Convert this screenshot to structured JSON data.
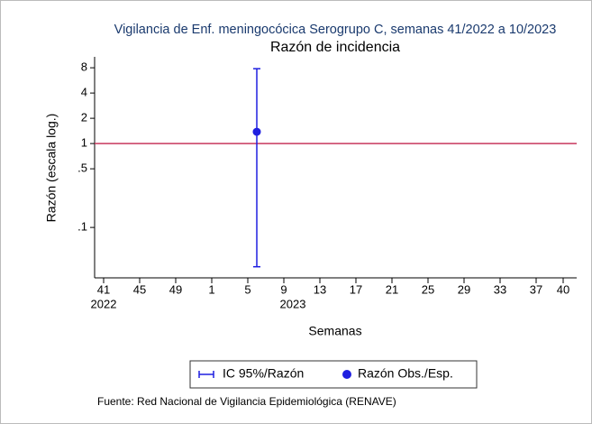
{
  "chart_data": {
    "type": "errorbar",
    "title": "Vigilancia de Enf. meningocócica Serogrupo C, semanas 41/2022 a 10/2023",
    "subtitle": "Razón de incidencia",
    "y_label": "Razón (escala log.)",
    "x_label": "Semanas",
    "source": "Fuente: Red Nacional de Vigilancia Epidemiológica (RENAVE)",
    "log_y": true,
    "xlim": [
      -1,
      52.5
    ],
    "ylim": [
      0.027,
      10.8
    ],
    "yticks": [
      8,
      4,
      2,
      1,
      {
        "value": 0.5,
        "label": ".5"
      },
      {
        "value": 0.1,
        "label": ".1"
      }
    ],
    "xticks": [
      {
        "value": 0,
        "label": "41"
      },
      {
        "value": 4,
        "label": "45"
      },
      {
        "value": 8,
        "label": "49"
      },
      {
        "value": 12,
        "label": "1"
      },
      {
        "value": 16,
        "label": "5"
      },
      {
        "value": 20,
        "label": "9"
      },
      {
        "value": 24,
        "label": "13"
      },
      {
        "value": 28,
        "label": "17"
      },
      {
        "value": 32,
        "label": "21"
      },
      {
        "value": 36,
        "label": "25"
      },
      {
        "value": 40,
        "label": "29"
      },
      {
        "value": 44,
        "label": "33"
      },
      {
        "value": 48,
        "label": "37"
      },
      {
        "value": 51,
        "label": "40"
      }
    ],
    "year_labels": [
      {
        "value": 0,
        "label": "2022"
      },
      {
        "value": 21,
        "label": "2023"
      }
    ],
    "reference_line": {
      "value": 1,
      "color": "#c8385e"
    },
    "series": [
      {
        "name": "Razón Obs./Esp.",
        "error_name": "IC 95%/Razón",
        "color": "#1f1fe0",
        "x": [
          17
        ],
        "values": [
          1.38
        ],
        "lower": [
          0.034
        ],
        "upper": [
          7.8
        ]
      }
    ],
    "legend": "bottom"
  }
}
